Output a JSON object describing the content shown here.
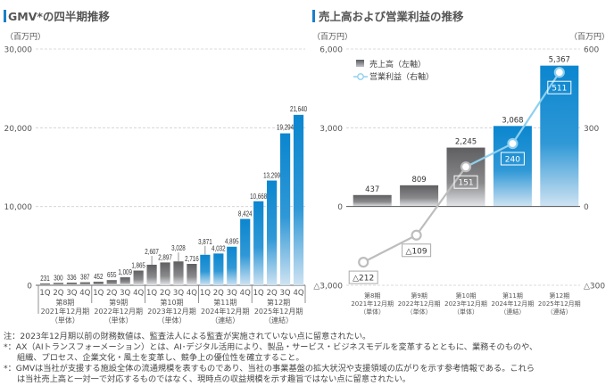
{
  "left_panel": {
    "title": "GMV*の四半期推移",
    "unit": "（百万円）"
  },
  "right_panel": {
    "title": "売上高および営業利益の推移",
    "unit_left": "（百万円）",
    "unit_right": "（百万円）"
  },
  "colors": {
    "accent_blue": "#1a87cf",
    "gray_bar": "#6e6e70",
    "profit_line_blue": "#8fd0ee",
    "profit_line_gray": "#bdbdbd",
    "title_mark": "#1a7fc9"
  },
  "chart_data": [
    {
      "type": "bar",
      "title": "GMV*の四半期推移",
      "ylabel": "（百万円）",
      "ylim": [
        0,
        30000
      ],
      "yticks": [
        0,
        10000,
        20000,
        30000
      ],
      "ytick_labels": [
        "0",
        "10,000",
        "20,000",
        "30,000"
      ],
      "grid": true,
      "quarters": [
        "1Q",
        "2Q",
        "3Q",
        "4Q"
      ],
      "periods": [
        {
          "name": "第8期",
          "fy": "2021年12月期",
          "basis": "（単体）",
          "values": [
            231,
            300,
            336,
            387
          ],
          "labels": [
            "231",
            "300",
            "336",
            "387"
          ],
          "color": "gray"
        },
        {
          "name": "第9期",
          "fy": "2022年12月期",
          "basis": "（単体）",
          "values": [
            452,
            655,
            1009,
            1865
          ],
          "labels": [
            "452",
            "655",
            "1,009",
            "1,865"
          ],
          "color": "gray"
        },
        {
          "name": "第10期",
          "fy": "2023年12月期",
          "basis": "（単体）",
          "values": [
            2607,
            2897,
            3028,
            2716
          ],
          "labels": [
            "2,607",
            "2,897",
            "3,028",
            "2,716"
          ],
          "color": "gray"
        },
        {
          "name": "第11期",
          "fy": "2024年12月期",
          "basis": "（連結）",
          "values": [
            3871,
            4032,
            4895,
            8424
          ],
          "labels": [
            "3,871",
            "4,032",
            "4,895",
            "8,424"
          ],
          "color": "blue"
        },
        {
          "name": "第12期",
          "fy": "2025年12月期",
          "basis": "（連結）",
          "values": [
            10668,
            13299,
            19294,
            21640
          ],
          "labels": [
            "10,668",
            "13,299",
            "19,294",
            "21,640"
          ],
          "color": "blue"
        }
      ]
    },
    {
      "type": "bar+line",
      "title": "売上高および営業利益の推移",
      "ylabel_left": "（百万円）",
      "ylabel_right": "（百万円）",
      "ylim_left": [
        -3000,
        6000
      ],
      "ylim_right": [
        -300,
        600
      ],
      "yticks_left_labels": [
        "△3,000",
        "0",
        "3,000",
        "6,000"
      ],
      "yticks_left": [
        -3000,
        0,
        3000,
        6000
      ],
      "yticks_right_labels": [
        "△300",
        "0",
        "300",
        "600"
      ],
      "yticks_right": [
        -300,
        0,
        300,
        600
      ],
      "grid": true,
      "legend": {
        "placement": "top-left",
        "items": [
          {
            "label": "売上高（左軸）",
            "kind": "bar"
          },
          {
            "label": "営業利益（右軸）",
            "kind": "line"
          }
        ]
      },
      "categories": [
        {
          "name": "第8期",
          "fy": "2021年12月期",
          "basis": "（単体）"
        },
        {
          "name": "第9期",
          "fy": "2022年12月期",
          "basis": "（単体）"
        },
        {
          "name": "第10期",
          "fy": "2023年12月期",
          "basis": "（単体）"
        },
        {
          "name": "第11期",
          "fy": "2024年12月期",
          "basis": "（連結）"
        },
        {
          "name": "第12期",
          "fy": "2025年12月期",
          "basis": "（連結）"
        }
      ],
      "series": [
        {
          "name": "売上高",
          "axis": "left",
          "values": [
            437,
            809,
            2245,
            3068,
            5367
          ],
          "labels": [
            "437",
            "809",
            "2,245",
            "3,068",
            "5,367"
          ],
          "colors": [
            "gray",
            "gray",
            "gray",
            "blue",
            "blue"
          ]
        },
        {
          "name": "営業利益",
          "axis": "right",
          "values": [
            -212,
            -109,
            151,
            240,
            511
          ],
          "labels": [
            "△212",
            "△109",
            "151",
            "240",
            "511"
          ]
        }
      ]
    }
  ],
  "notes": [
    "注：2023年12月期以前の財務数値は、監査法人による監査が実施されていない点に留意されたい。",
    "*：AX（AIトランスフォーメーション）とは、AI･デジタル活用により、製品・サービス・ビジネスモデルを変革するとともに、業務そのものや、",
    "組織、プロセス、企業文化・風土を変革し、競争上の優位性を確立すること。",
    "*：GMVは当社が支援する施設全体の流通規模を表すものであり、当社の事業基盤の拡大状況や支援領域の広がりを示す参考情報である。これら",
    "は当社売上高と一対一で対応するものではなく、現時点の収益規模を示す趣旨ではない点に留意されたい。"
  ]
}
